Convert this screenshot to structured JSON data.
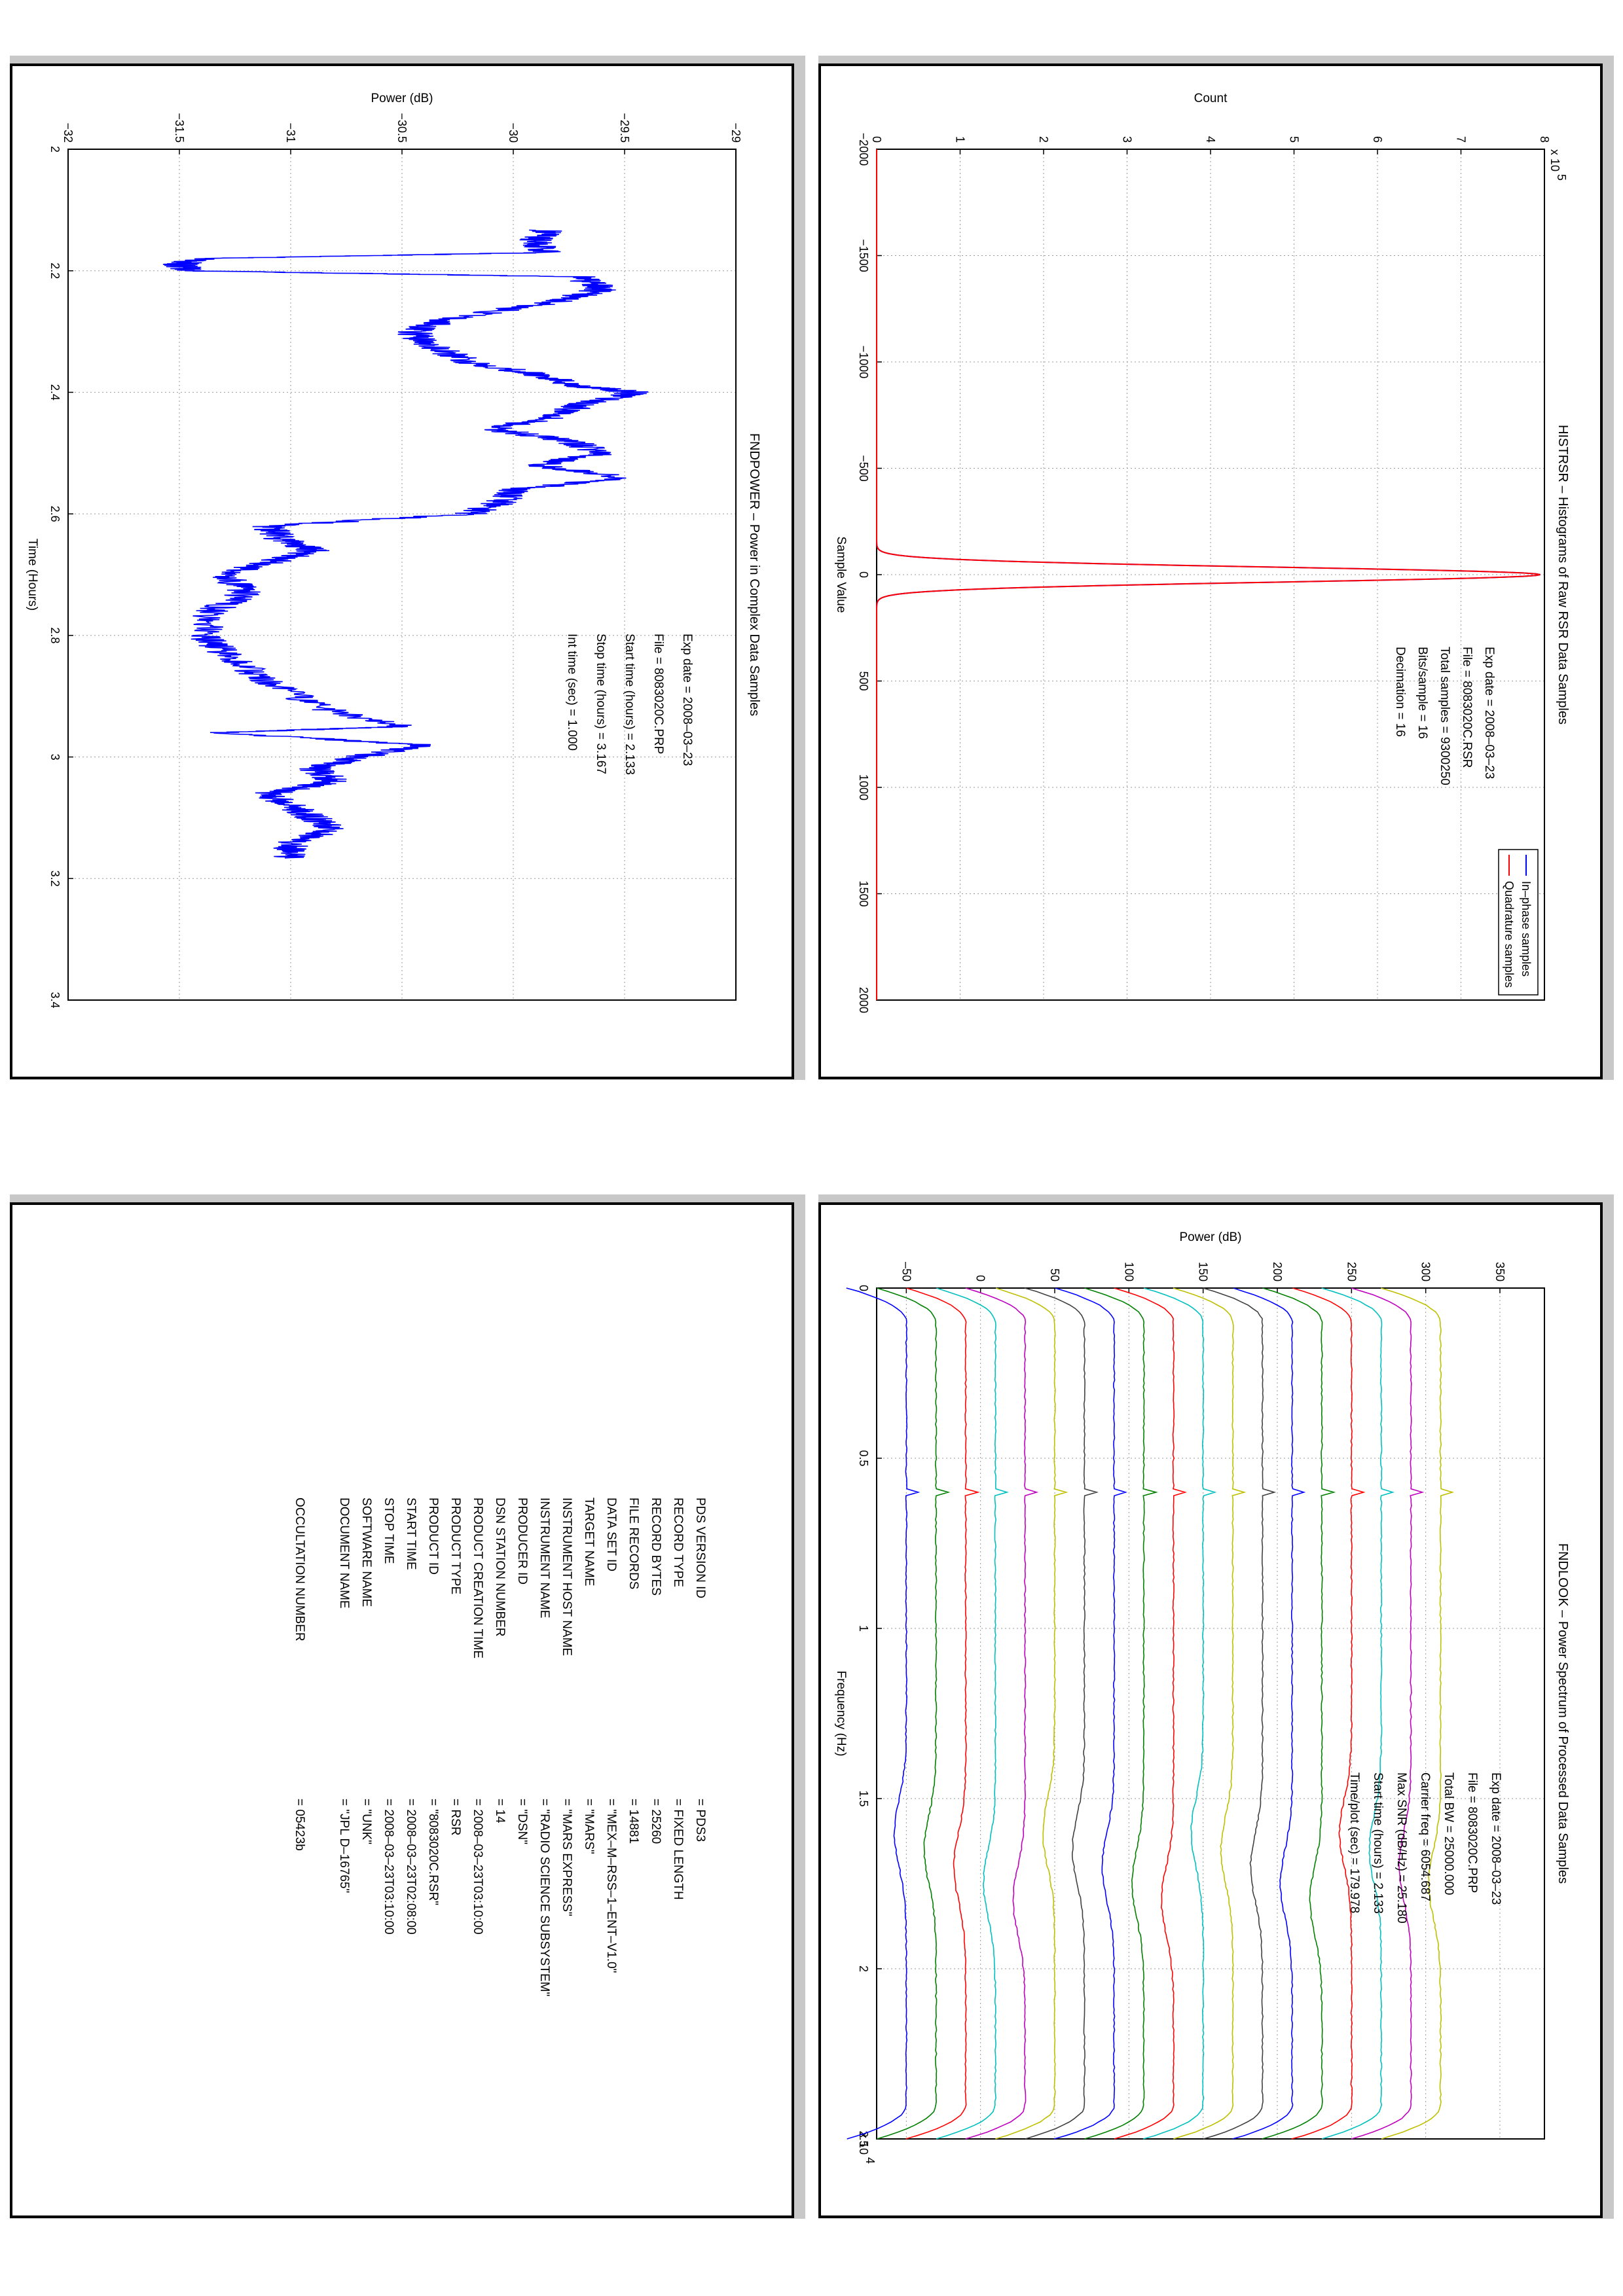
{
  "colors": {
    "blue": "#0000ff",
    "red": "#ff0000",
    "frame": "#000000",
    "grid": "#888888",
    "shadow": "#c8c8c8",
    "spectrum_palette": [
      "#0000ff",
      "#008000",
      "#ff0000",
      "#00bfbf",
      "#bf00bf",
      "#bfbf00",
      "#404040",
      "#0000ff",
      "#008000",
      "#ff0000",
      "#00bfbf",
      "#bfbf00",
      "#404040",
      "#0000ff",
      "#008000",
      "#ff0000",
      "#00bfbf",
      "#bf00bf",
      "#bfbf00"
    ]
  },
  "histrsr": {
    "title": "HISTRSR – Histograms of Raw RSR Data Samples",
    "info": [
      "Exp date = 2008–03–23",
      "File = 8083020C.RSR",
      "Total samples =  9300250",
      "Bits/sample   =      16",
      "Decimation    =      16"
    ],
    "legend": [
      "In–phase samples",
      "Quadrature samples"
    ]
  },
  "fndpower": {
    "title": "FNDPOWER – Power in Complex Data Samples",
    "info": [
      "Exp date = 2008–03–23",
      "File = 8083020C.PRP",
      "Start time (hours) =  2.133",
      "Stop time (hours)  =  3.167",
      "Int time (sec) =      1.000"
    ]
  },
  "fndlook": {
    "title": "FNDLOOK – Power Spectrum of Processed Data Samples",
    "info": [
      "Exp date = 2008–03–23",
      "File = 8083020C.PRP",
      "Total BW =       25000.000",
      "Carrier freq =    6054.687",
      "Max SNR (dB/Hz) =     25.180",
      "Start time (hours) =  2.133",
      "Time/plot (sec) =    179.978"
    ]
  },
  "label": {
    "rows": [
      {
        "key": "PDS VERSION ID",
        "value": "= PDS3"
      },
      {
        "key": "RECORD TYPE",
        "value": "= FIXED LENGTH"
      },
      {
        "key": "RECORD BYTES",
        "value": "= 25260"
      },
      {
        "key": "FILE RECORDS",
        "value": "= 14881"
      },
      {
        "key": "DATA SET ID",
        "value": "= \"MEX–M–RSS–1–ENT–V1.0\""
      },
      {
        "key": "TARGET NAME",
        "value": "= \"MARS\""
      },
      {
        "key": "INSTRUMENT HOST NAME",
        "value": "= \"MARS EXPRESS\""
      },
      {
        "key": "INSTRUMENT NAME",
        "value": "= \"RADIO SCIENCE SUBSYSTEM\""
      },
      {
        "key": "PRODUCER ID",
        "value": "= \"DSN\""
      },
      {
        "key": "DSN STATION NUMBER",
        "value": "= 14"
      },
      {
        "key": "PRODUCT CREATION TIME",
        "value": "= 2008–03–23T03:10:00"
      },
      {
        "key": "PRODUCT TYPE",
        "value": "= RSR"
      },
      {
        "key": "PRODUCT ID",
        "value": "= \"8083020C.RSR\""
      },
      {
        "key": "START TIME",
        "value": "= 2008–03–23T02:08:00"
      },
      {
        "key": "STOP TIME",
        "value": "= 2008–03–23T03:10:00"
      },
      {
        "key": "SOFTWARE NAME",
        "value": "= \"UNK\""
      },
      {
        "key": "DOCUMENT NAME",
        "value": "= \"JPL D–16765\""
      },
      {
        "key": "",
        "value": ""
      },
      {
        "key": "OCCULTATION NUMBER",
        "value": "= 05423b"
      }
    ]
  },
  "chart_data": [
    {
      "type": "line",
      "title": "HISTRSR – Histograms of Raw RSR Data Samples",
      "xlabel": "Sample Value",
      "ylabel": "Count",
      "y_multiplier": "x 10^5",
      "xlim": [
        -2000,
        2000
      ],
      "ylim": [
        0,
        8
      ],
      "xticks": [
        -2000,
        -1500,
        -1000,
        -500,
        0,
        500,
        1000,
        1500,
        2000
      ],
      "yticks": [
        0,
        1,
        2,
        3,
        4,
        5,
        6,
        7,
        8
      ],
      "grid": true,
      "legend_position": "top-right",
      "series": [
        {
          "name": "In–phase samples",
          "color": "#0000ff",
          "shape": "gaussian",
          "peak_x": 0,
          "peak_y": 7.95,
          "sigma": 35
        },
        {
          "name": "Quadrature samples",
          "color": "#ff0000",
          "shape": "gaussian",
          "peak_x": 0,
          "peak_y": 7.95,
          "sigma": 35
        }
      ]
    },
    {
      "type": "line",
      "title": "FNDPOWER – Power in Complex Data Samples",
      "xlabel": "Time (Hours)",
      "ylabel": "Power (dB)",
      "xlim": [
        2,
        3.4
      ],
      "ylim": [
        -32,
        -29
      ],
      "xticks": [
        2,
        2.2,
        2.4,
        2.6,
        2.8,
        3,
        3.2,
        3.4
      ],
      "yticks": [
        -32,
        -31.5,
        -31,
        -30.5,
        -30,
        -29.5,
        -29
      ],
      "grid": true,
      "series": [
        {
          "name": "",
          "color": "#0000ff",
          "x": [
            2.133,
            2.15,
            2.17,
            2.18,
            2.19,
            2.2,
            2.21,
            2.23,
            2.25,
            2.28,
            2.3,
            2.32,
            2.35,
            2.37,
            2.39,
            2.4,
            2.42,
            2.44,
            2.46,
            2.48,
            2.5,
            2.52,
            2.54,
            2.56,
            2.58,
            2.6,
            2.62,
            2.64,
            2.66,
            2.68,
            2.7,
            2.73,
            2.76,
            2.8,
            2.84,
            2.88,
            2.92,
            2.95,
            2.96,
            2.98,
            3.0,
            3.02,
            3.04,
            3.06,
            3.08,
            3.1,
            3.12,
            3.14,
            3.167
          ],
          "y": [
            -29.85,
            -29.9,
            -29.85,
            -31.4,
            -31.5,
            -31.45,
            -29.7,
            -29.6,
            -29.8,
            -30.3,
            -30.45,
            -30.4,
            -30.2,
            -29.9,
            -29.7,
            -29.45,
            -29.7,
            -29.8,
            -30.1,
            -29.75,
            -29.6,
            -29.9,
            -29.5,
            -30.0,
            -30.05,
            -30.2,
            -31.1,
            -31.05,
            -30.9,
            -31.1,
            -31.3,
            -31.2,
            -31.35,
            -31.4,
            -31.25,
            -31.1,
            -30.85,
            -30.5,
            -31.35,
            -30.4,
            -30.7,
            -30.9,
            -30.8,
            -31.1,
            -31.0,
            -30.9,
            -30.8,
            -31.0,
            -31.0
          ]
        }
      ]
    },
    {
      "type": "line",
      "title": "FNDLOOK – Power Spectrum of Processed Data Samples",
      "xlabel": "Frequency (Hz)",
      "ylabel": "Power (dB)",
      "x_multiplier": "x 10^4",
      "xlim": [
        0,
        2.5
      ],
      "ylim": [
        -70,
        380
      ],
      "xticks": [
        0,
        0.5,
        1,
        1.5,
        2,
        2.5
      ],
      "yticks": [
        -50,
        0,
        50,
        100,
        150,
        200,
        250,
        300,
        350
      ],
      "yticklabels": [
        "–50",
        "0",
        "50",
        "100",
        "150",
        "200",
        "250",
        "300",
        "350"
      ],
      "grid": true,
      "stack_offsets": [
        -50,
        -30,
        -10,
        10,
        30,
        50,
        70,
        90,
        110,
        130,
        150,
        170,
        190,
        210,
        230,
        250,
        270,
        290,
        310
      ]
    }
  ]
}
